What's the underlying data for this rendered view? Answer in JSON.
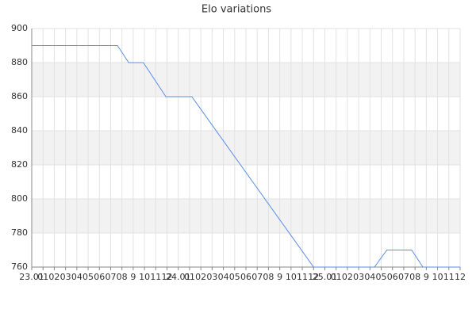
{
  "chart_data": {
    "type": "line",
    "title": "Elo variations",
    "x": [
      0,
      7.6,
      8.6,
      9.9,
      11.9,
      14.2,
      25,
      30.4,
      31.5,
      33.7,
      34.7,
      38
    ],
    "series": [
      {
        "name": "Elo",
        "color": "#5b8ee6",
        "values": [
          890,
          890,
          880,
          880,
          860,
          860,
          760,
          760,
          770,
          770,
          760,
          760
        ]
      }
    ],
    "xlim": [
      0,
      38
    ],
    "xticks": [
      {
        "value": 0,
        "label": "23.01"
      },
      {
        "value": 1,
        "label": "01"
      },
      {
        "value": 2,
        "label": "02"
      },
      {
        "value": 3,
        "label": "03"
      },
      {
        "value": 4,
        "label": "04"
      },
      {
        "value": 5,
        "label": "05"
      },
      {
        "value": 6,
        "label": "06"
      },
      {
        "value": 7,
        "label": "07"
      },
      {
        "value": 8,
        "label": "08"
      },
      9,
      10,
      11,
      12,
      {
        "value": 13,
        "label": "24.01"
      },
      {
        "value": 14,
        "label": "01"
      },
      {
        "value": 15,
        "label": "02"
      },
      {
        "value": 16,
        "label": "03"
      },
      {
        "value": 17,
        "label": "04"
      },
      {
        "value": 18,
        "label": "05"
      },
      {
        "value": 19,
        "label": "06"
      },
      {
        "value": 20,
        "label": "07"
      },
      {
        "value": 21,
        "label": "08"
      },
      {
        "value": 22,
        "label": "9"
      },
      {
        "value": 23,
        "label": "10"
      },
      {
        "value": 24,
        "label": "11"
      },
      {
        "value": 25,
        "label": "12"
      },
      {
        "value": 26,
        "label": "25.01"
      },
      {
        "value": 27,
        "label": "01"
      },
      {
        "value": 28,
        "label": "02"
      },
      {
        "value": 29,
        "label": "03"
      },
      {
        "value": 30,
        "label": "04"
      },
      {
        "value": 31,
        "label": "05"
      },
      {
        "value": 32,
        "label": "06"
      },
      {
        "value": 33,
        "label": "07"
      },
      {
        "value": 34,
        "label": "08"
      },
      {
        "value": 35,
        "label": "9"
      },
      {
        "value": 36,
        "label": "10"
      },
      {
        "value": 37,
        "label": "11"
      },
      {
        "value": 38,
        "label": "12"
      }
    ],
    "ylim": [
      760,
      900
    ],
    "yticks": [
      760,
      780,
      800,
      820,
      840,
      860,
      880,
      900
    ],
    "grid": true
  }
}
